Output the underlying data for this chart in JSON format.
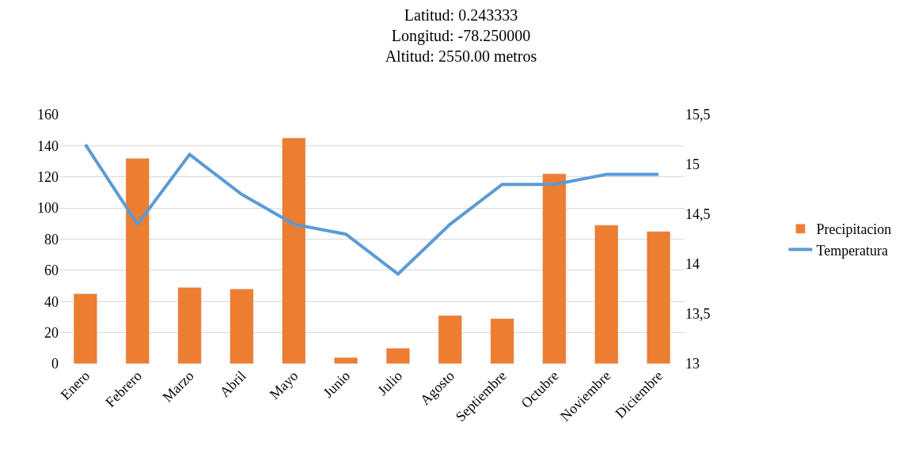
{
  "chart_data": {
    "type": "bar",
    "title": "Latitud: 0.243333\nLongitud: -78.250000\nAltitud: 2550.00 metros",
    "categories": [
      "Enero",
      "Febrero",
      "Marzo",
      "Abril",
      "Mayo",
      "Junio",
      "Julio",
      "Agosto",
      "Septiembre",
      "Octubre",
      "Noviembre",
      "Diciembre"
    ],
    "series": [
      {
        "name": "Precipitacion",
        "color": "#ed7d31",
        "values": [
          45,
          132,
          49,
          48,
          145,
          4,
          10,
          31,
          29,
          122,
          89,
          85
        ]
      },
      {
        "name": "Temperatura",
        "type": "line",
        "axis": "y2",
        "color": "#5b9bd5",
        "values": [
          15.2,
          14.4,
          15.1,
          14.7,
          14.4,
          14.3,
          13.9,
          14.4,
          14.8,
          14.8,
          14.9,
          14.9
        ]
      }
    ],
    "ylim": [
      0,
      160
    ],
    "yticks": [
      0,
      20,
      40,
      60,
      80,
      100,
      120,
      140,
      160
    ],
    "y2lim": [
      13,
      15.5
    ],
    "y2ticks": [
      13,
      {
        "value": 13.5,
        "label": "13,5"
      },
      14,
      {
        "value": 14.5,
        "label": "14,5"
      },
      15,
      {
        "value": 15.5,
        "label": "15,5"
      }
    ],
    "grid": "y",
    "legend": "right",
    "marker": "none"
  }
}
